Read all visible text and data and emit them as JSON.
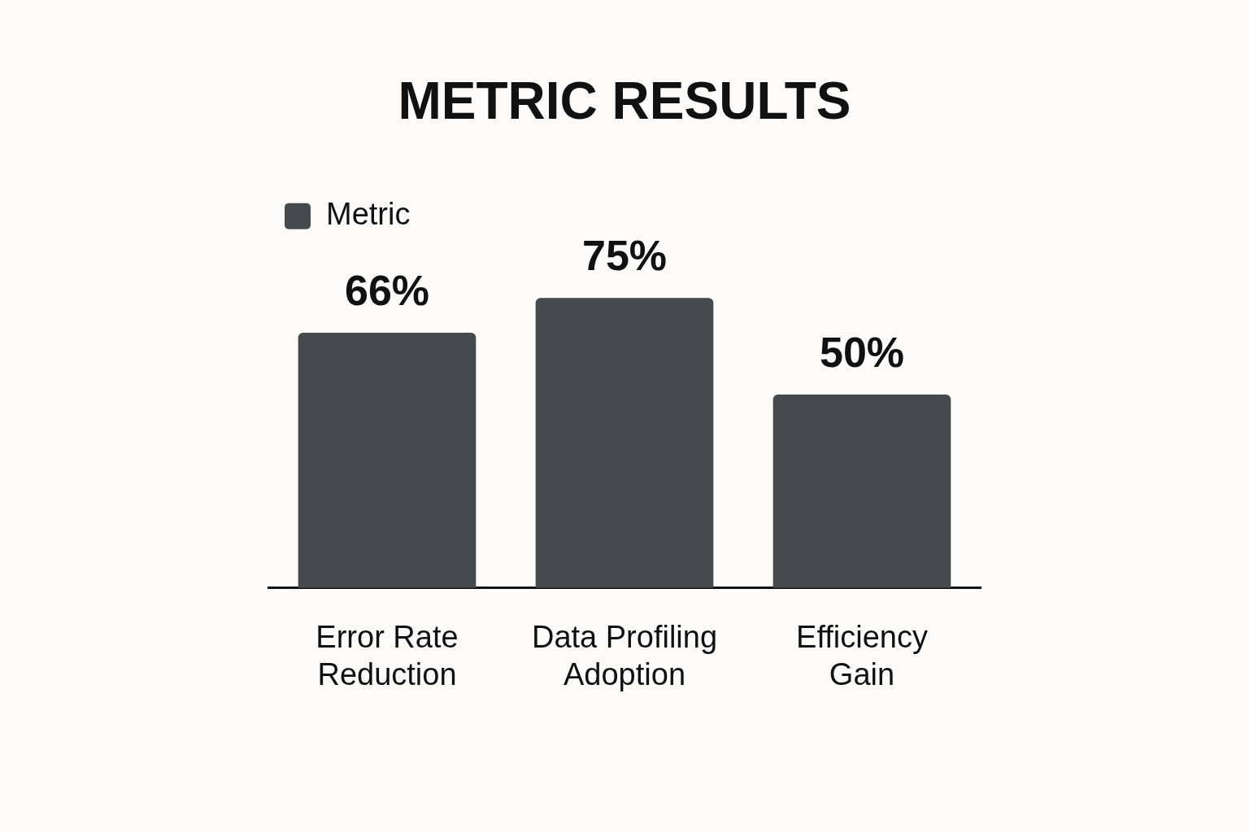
{
  "chart_data": {
    "type": "bar",
    "title": "METRIC RESULTS",
    "categories": [
      "Error Rate Reduction",
      "Data Profiling Adoption",
      "Efficiency Gain"
    ],
    "series": [
      {
        "name": "Metric",
        "color": "#474a4d",
        "values": [
          66,
          75,
          50
        ],
        "value_labels": [
          "66%",
          "75%",
          "50%"
        ]
      }
    ],
    "legend": "top left",
    "grid": false,
    "tick_labels": "x"
  }
}
